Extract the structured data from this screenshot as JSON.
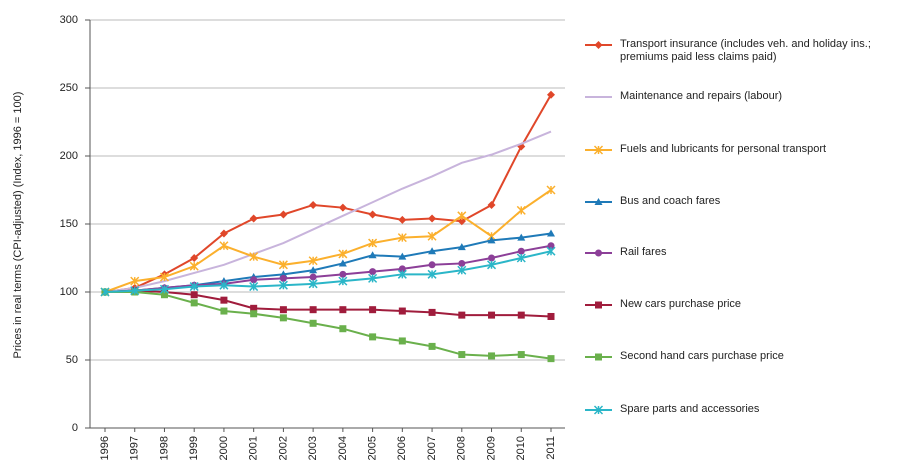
{
  "chart_data": {
    "type": "line",
    "y_label": "Prices in real terms (CPI-adjusted) (Index, 1996 = 100)",
    "categories": [
      "1996",
      "1997",
      "1998",
      "1999",
      "2000",
      "2001",
      "2002",
      "2003",
      "2004",
      "2005",
      "2006",
      "2007",
      "2008",
      "2009",
      "2010",
      "2011"
    ],
    "ylim": [
      0,
      300
    ],
    "yticks": [
      0,
      50,
      100,
      150,
      200,
      250,
      300
    ],
    "grid": true,
    "legend": "right",
    "series": [
      {
        "name": "Transport insurance (includes veh. and holiday ins.; premiums paid less claims paid)",
        "color": "#e0472a",
        "marker": "diamond",
        "values": [
          100,
          103,
          113,
          125,
          143,
          154,
          157,
          164,
          162,
          157,
          153,
          154,
          152,
          164,
          207,
          245
        ]
      },
      {
        "name": "Maintenance and repairs (labour)",
        "color": "#c8b4dc",
        "marker": "none",
        "values": [
          100,
          103,
          108,
          114,
          120,
          128,
          136,
          146,
          156,
          166,
          176,
          185,
          195,
          201,
          209,
          218
        ]
      },
      {
        "name": "Fuels and lubricants for personal transport",
        "color": "#fbb02d",
        "marker": "cross",
        "values": [
          100,
          108,
          111,
          119,
          134,
          126,
          120,
          123,
          128,
          136,
          140,
          141,
          156,
          141,
          160,
          175
        ]
      },
      {
        "name": "Bus and coach fares",
        "color": "#1f7ab8",
        "marker": "triangle",
        "values": [
          100,
          101,
          103,
          105,
          108,
          111,
          113,
          116,
          121,
          127,
          126,
          130,
          133,
          138,
          140,
          143
        ]
      },
      {
        "name": "Rail fares",
        "color": "#8c3f98",
        "marker": "circle",
        "values": [
          100,
          101,
          103,
          105,
          106,
          109,
          110,
          111,
          113,
          115,
          117,
          120,
          121,
          125,
          130,
          134
        ]
      },
      {
        "name": "New cars purchase price",
        "color": "#a01c3c",
        "marker": "square",
        "values": [
          100,
          101,
          100,
          98,
          94,
          88,
          87,
          87,
          87,
          87,
          86,
          85,
          83,
          83,
          83,
          82
        ]
      },
      {
        "name": "Second hand cars purchase price",
        "color": "#6ab04c",
        "marker": "square",
        "values": [
          100,
          100,
          98,
          92,
          86,
          84,
          81,
          77,
          73,
          67,
          64,
          60,
          54,
          53,
          54,
          51
        ]
      },
      {
        "name": "Spare parts and accessories",
        "color": "#2bb6c8",
        "marker": "cross",
        "values": [
          100,
          101,
          102,
          104,
          105,
          104,
          105,
          106,
          108,
          110,
          113,
          113,
          116,
          120,
          125,
          130
        ]
      }
    ]
  }
}
